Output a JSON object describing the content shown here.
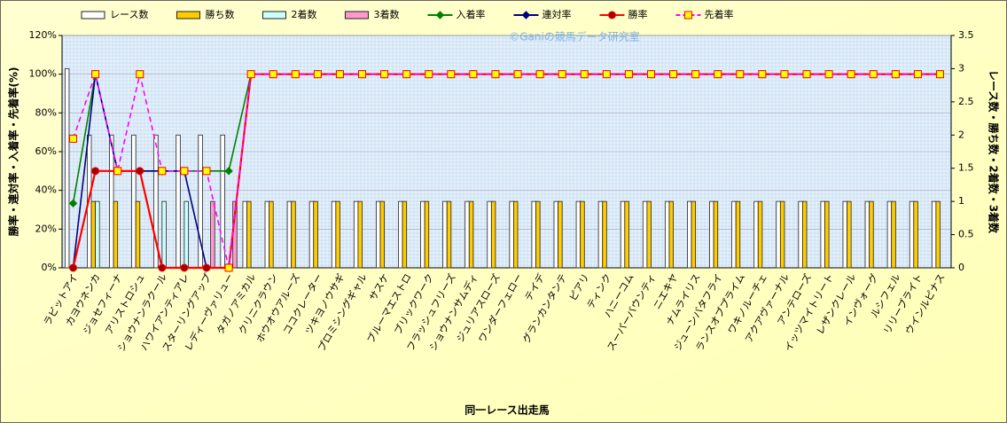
{
  "chart_data": {
    "type": "bar-line",
    "annotation": "©Ganiの競馬データ研究室",
    "xlabel": "同一レース出走馬",
    "ylabel": "勝率・連対率・入着率・先着率(%)",
    "y2label": "レース数・勝ち数・2着数・3着数",
    "categories": [
      "ラビットアイ",
      "カヨウネンカ",
      "ジョセフィーナ",
      "アリストロシュ",
      "ショウナンラクール",
      "ハワイアンティアレ",
      "スターリングアップ",
      "レディーヴァリュー",
      "タガノアミカル",
      "クリニクラウン",
      "ホウオウアルーズ",
      "ココクレーター",
      "ツキヨノウサギ",
      "プロミシングギャル",
      "サスケ",
      "ブルーマエストロ",
      "ブリックワーク",
      "フラッシュフリーズ",
      "ショウナンサムディ",
      "ジュリアスローズ",
      "ワンダーフェロー",
      "テイデ",
      "グランカンタンテ",
      "ピアリ",
      "ティンク",
      "ハニーコム",
      "スーパーバウンティ",
      "ニエキヤ",
      "ナムライリス",
      "ジューンバタフライ",
      "ランスオブプライム",
      "ワキノルーチェ",
      "アクアヴァーナル",
      "アンテローズ",
      "イッツマイトリート",
      "レザンクレール",
      "インヴォーグ",
      "ルシフェル",
      "リリーブライト",
      "ウインルピナス"
    ],
    "ylim": [
      0,
      120
    ],
    "yticks": [
      {
        "value": 0,
        "label": "0%"
      },
      {
        "value": 20,
        "label": "20%"
      },
      {
        "value": 40,
        "label": "40%"
      },
      {
        "value": 60,
        "label": "60%"
      },
      {
        "value": 80,
        "label": "80%"
      },
      {
        "value": 100,
        "label": "100%"
      },
      {
        "value": 120,
        "label": "120%"
      }
    ],
    "y2lim": [
      0,
      3.5
    ],
    "y2ticks": [
      0,
      0.5,
      1,
      1.5,
      2,
      2.5,
      3,
      3.5
    ],
    "grid": true,
    "series": [
      {
        "name": "レース数",
        "type": "bar",
        "axis": "y2",
        "color": "#ffffff",
        "values": [
          3,
          2,
          2,
          2,
          2,
          2,
          2,
          2,
          1,
          1,
          1,
          1,
          1,
          1,
          1,
          1,
          1,
          1,
          1,
          1,
          1,
          1,
          1,
          1,
          1,
          1,
          1,
          1,
          1,
          1,
          1,
          1,
          1,
          1,
          1,
          1,
          1,
          1,
          1,
          1
        ]
      },
      {
        "name": "勝ち数",
        "type": "bar",
        "axis": "y2",
        "color": "#ffcc00",
        "values": [
          0,
          1,
          1,
          1,
          0,
          0,
          0,
          0,
          1,
          1,
          1,
          1,
          1,
          1,
          1,
          1,
          1,
          1,
          1,
          1,
          1,
          1,
          1,
          1,
          1,
          1,
          1,
          1,
          1,
          1,
          1,
          1,
          1,
          1,
          1,
          1,
          1,
          1,
          1,
          1
        ]
      },
      {
        "name": "2着数",
        "type": "bar",
        "axis": "y2",
        "color": "#ccffff",
        "values": [
          0,
          1,
          0,
          0,
          1,
          1,
          0,
          0,
          0,
          0,
          0,
          0,
          0,
          0,
          0,
          0,
          0,
          0,
          0,
          0,
          0,
          0,
          0,
          0,
          0,
          0,
          0,
          0,
          0,
          0,
          0,
          0,
          0,
          0,
          0,
          0,
          0,
          0,
          0,
          0
        ]
      },
      {
        "name": "3着数",
        "type": "bar",
        "axis": "y2",
        "color": "#ff99cc",
        "values": [
          0,
          0,
          0,
          0,
          0,
          0,
          1,
          1,
          0,
          0,
          0,
          0,
          0,
          0,
          0,
          0,
          0,
          0,
          0,
          0,
          0,
          0,
          0,
          0,
          0,
          0,
          0,
          0,
          0,
          0,
          0,
          0,
          0,
          0,
          0,
          0,
          0,
          0,
          0,
          0
        ]
      },
      {
        "name": "入着率",
        "type": "line",
        "color": "#008000",
        "marker": "diamond",
        "values": [
          33.3,
          100,
          50,
          50,
          50,
          50,
          50,
          50,
          100,
          100,
          100,
          100,
          100,
          100,
          100,
          100,
          100,
          100,
          100,
          100,
          100,
          100,
          100,
          100,
          100,
          100,
          100,
          100,
          100,
          100,
          100,
          100,
          100,
          100,
          100,
          100,
          100,
          100,
          100,
          100
        ]
      },
      {
        "name": "連対率",
        "type": "line",
        "color": "#000080",
        "marker": "diamond",
        "values": [
          0,
          100,
          50,
          50,
          50,
          50,
          0,
          0,
          100,
          100,
          100,
          100,
          100,
          100,
          100,
          100,
          100,
          100,
          100,
          100,
          100,
          100,
          100,
          100,
          100,
          100,
          100,
          100,
          100,
          100,
          100,
          100,
          100,
          100,
          100,
          100,
          100,
          100,
          100,
          100
        ]
      },
      {
        "name": "勝率",
        "type": "line",
        "color": "#ff0000",
        "marker": "circle",
        "values": [
          0,
          50,
          50,
          50,
          0,
          0,
          0,
          0,
          100,
          100,
          100,
          100,
          100,
          100,
          100,
          100,
          100,
          100,
          100,
          100,
          100,
          100,
          100,
          100,
          100,
          100,
          100,
          100,
          100,
          100,
          100,
          100,
          100,
          100,
          100,
          100,
          100,
          100,
          100,
          100
        ]
      },
      {
        "name": "先着率",
        "type": "line",
        "color": "#ff00ff",
        "marker": "square",
        "dashed": true,
        "values": [
          66.7,
          100,
          50,
          100,
          50,
          50,
          50,
          0,
          100,
          100,
          100,
          100,
          100,
          100,
          100,
          100,
          100,
          100,
          100,
          100,
          100,
          100,
          100,
          100,
          100,
          100,
          100,
          100,
          100,
          100,
          100,
          100,
          100,
          100,
          100,
          100,
          100,
          100,
          100,
          100
        ]
      }
    ]
  }
}
